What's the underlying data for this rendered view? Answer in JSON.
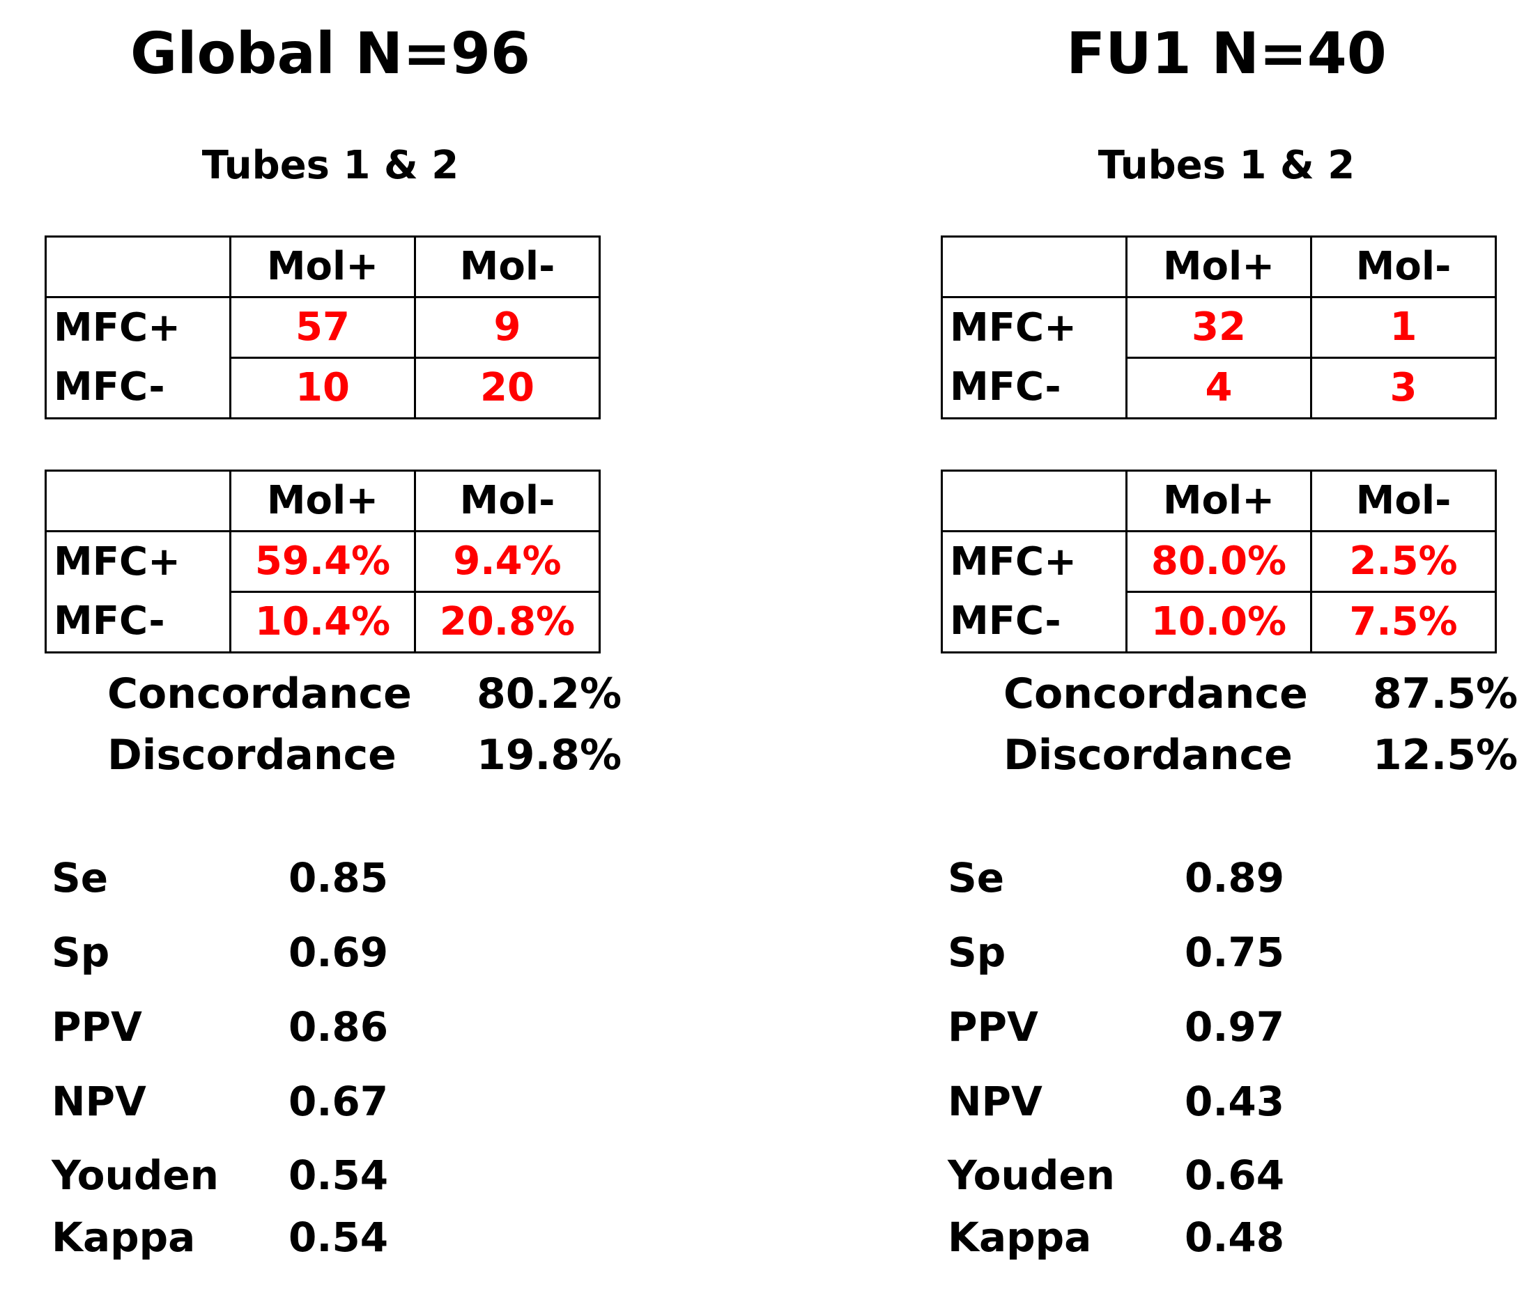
{
  "panels": [
    {
      "title": "Global N=96",
      "subtitle": "Tubes 1 & 2",
      "counts_table": {
        "col_headers": [
          "Mol+",
          "Mol-"
        ],
        "rows": [
          {
            "label": "MFC+",
            "values": [
              "57",
              "9"
            ]
          },
          {
            "label": "MFC-",
            "values": [
              "10",
              "20"
            ]
          }
        ]
      },
      "percent_table": {
        "col_headers": [
          "Mol+",
          "Mol-"
        ],
        "rows": [
          {
            "label": "MFC+",
            "values": [
              "59.4%",
              "9.4%"
            ]
          },
          {
            "label": "MFC-",
            "values": [
              "10.4%",
              "20.8%"
            ]
          }
        ]
      },
      "concordance": {
        "label": "Concordance",
        "value": "80.2%"
      },
      "discordance": {
        "label": "Discordance",
        "value": "19.8%"
      },
      "metrics": [
        {
          "label": "Se",
          "value": "0.85"
        },
        {
          "label": "Sp",
          "value": "0.69"
        },
        {
          "label": "PPV",
          "value": "0.86"
        },
        {
          "label": "NPV",
          "value": "0.67"
        },
        {
          "label": "Youden",
          "value": "0.54"
        },
        {
          "label": "Kappa",
          "value": "0.54"
        }
      ]
    },
    {
      "title": "FU1 N=40",
      "subtitle": "Tubes 1 & 2",
      "counts_table": {
        "col_headers": [
          "Mol+",
          "Mol-"
        ],
        "rows": [
          {
            "label": "MFC+",
            "values": [
              "32",
              "1"
            ]
          },
          {
            "label": "MFC-",
            "values": [
              "4",
              "3"
            ]
          }
        ]
      },
      "percent_table": {
        "col_headers": [
          "Mol+",
          "Mol-"
        ],
        "rows": [
          {
            "label": "MFC+",
            "values": [
              "80.0%",
              "2.5%"
            ]
          },
          {
            "label": "MFC-",
            "values": [
              "10.0%",
              "7.5%"
            ]
          }
        ]
      },
      "concordance": {
        "label": "Concordance",
        "value": "87.5%"
      },
      "discordance": {
        "label": "Discordance",
        "value": "12.5%"
      },
      "metrics": [
        {
          "label": "Se",
          "value": "0.89"
        },
        {
          "label": "Sp",
          "value": "0.75"
        },
        {
          "label": "PPV",
          "value": "0.97"
        },
        {
          "label": "NPV",
          "value": "0.43"
        },
        {
          "label": "Youden",
          "value": "0.64"
        },
        {
          "label": "Kappa",
          "value": "0.48"
        }
      ]
    }
  ],
  "colors": {
    "cell_values": "#ff0000",
    "text": "#000000",
    "border": "#000000"
  }
}
